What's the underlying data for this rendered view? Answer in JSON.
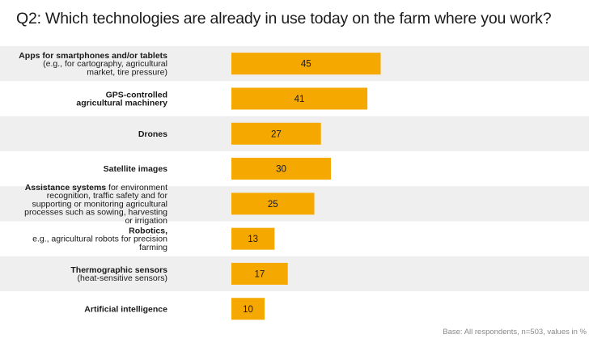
{
  "chart_data": {
    "type": "bar",
    "orientation": "horizontal",
    "title": "Q2: Which technologies are already in use today on the farm where you work?",
    "footnote": "Base: All respondents, n=503, values in %",
    "unit": "%",
    "categories": [
      {
        "bold": "Apps for smartphones and/or tablets",
        "rest": "(e.g., for cartography, agricultural market, tire pressure)"
      },
      {
        "bold": "GPS-controlled agricultural machinery",
        "rest": ""
      },
      {
        "bold": "Drones",
        "rest": ""
      },
      {
        "bold": "Satellite images",
        "rest": ""
      },
      {
        "bold": "Assistance systems",
        "rest": "for environment recognition, traffic safety and for supporting or monitoring agricultural processes such as sowing, harvesting or irrigation"
      },
      {
        "bold": "Robotics,",
        "rest": "e.g., agricultural robots for precision farming"
      },
      {
        "bold": "Thermographic sensors",
        "rest": "(heat-sensitive sensors)"
      },
      {
        "bold": "Artificial intelligence",
        "rest": ""
      }
    ],
    "label_lines": [
      [
        [
          "Apps for smartphones and/or tablets",
          true
        ],
        [
          "(e.g., for cartography, agricultural",
          false
        ],
        [
          "market, tire pressure)",
          false
        ]
      ],
      [
        [
          "GPS-controlled",
          true
        ],
        [
          "agricultural machinery",
          true
        ]
      ],
      [
        [
          "Drones",
          true
        ]
      ],
      [
        [
          "Satellite images",
          true
        ]
      ],
      [
        [
          "Assistance systems|| for environment",
          "mixed"
        ],
        [
          "recognition, traffic safety and for",
          false
        ],
        [
          "supporting or monitoring agricultural",
          false
        ],
        [
          "processes such as sowing, harvesting",
          false
        ],
        [
          "or irrigation",
          false
        ]
      ],
      [
        [
          "Robotics,",
          true
        ],
        [
          "e.g., agricultural robots for precision",
          false
        ],
        [
          "farming",
          false
        ]
      ],
      [
        [
          "Thermographic sensors",
          true
        ],
        [
          "(heat-sensitive sensors)",
          false
        ]
      ],
      [
        [
          "Artificial intelligence",
          true
        ]
      ]
    ],
    "values": [
      45,
      41,
      27,
      30,
      25,
      13,
      17,
      10
    ],
    "colors": {
      "bar": "#f5a800",
      "row_background": "#efefef"
    }
  }
}
